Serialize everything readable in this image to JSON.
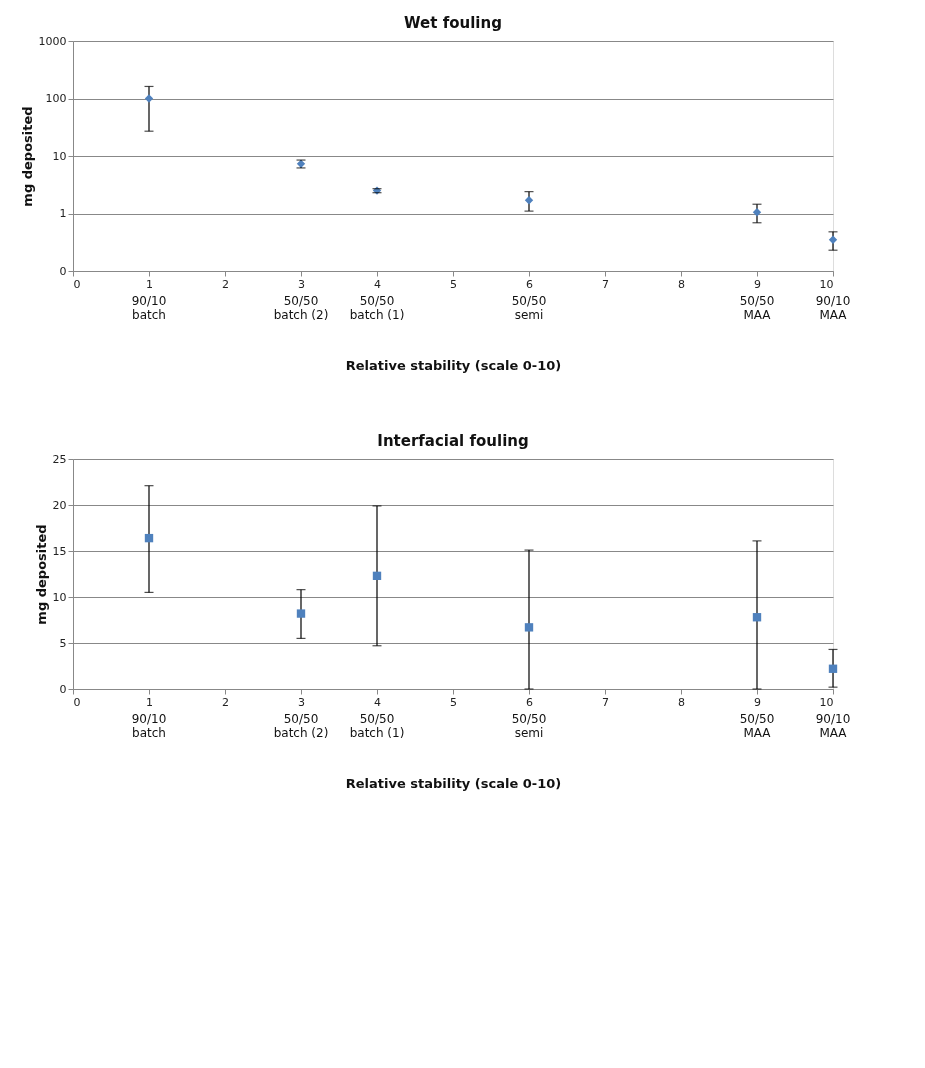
{
  "chart_data": [
    {
      "type": "scatter",
      "title": "Wet fouling",
      "xlabel": "Relative stability (scale  0-10)",
      "ylabel": "mg  deposited",
      "marker": "diamond",
      "grid": "y",
      "log": "y",
      "x": [
        1,
        3,
        4,
        6,
        9,
        10
      ],
      "series": [
        {
          "color": "#4f81bd",
          "values": [
            100,
            7.3,
            2.5,
            1.7,
            1.05,
            0.35
          ],
          "errors": [
            [
              27,
              162
            ],
            [
              6.2,
              8.5
            ],
            [
              2.3,
              2.7
            ],
            [
              1.1,
              2.4
            ],
            [
              0.69,
              1.45
            ],
            [
              0.23,
              0.48
            ]
          ]
        }
      ],
      "xlim": [
        0,
        10
      ],
      "xticks": [
        0,
        1,
        2,
        3,
        4,
        5,
        6,
        7,
        8,
        9,
        10
      ],
      "ylim": [
        0.1,
        1000
      ],
      "yticks": [
        {
          "value": 0.1,
          "label": "0"
        },
        1,
        10,
        100,
        1000
      ],
      "annotations": [
        "90/10\nbatch",
        "50/50\nbatch (2)",
        "50/50\nbatch (1)",
        "50/50\nsemi",
        "50/50\nMAA",
        "90/10\nMAA"
      ]
    },
    {
      "type": "scatter",
      "title": "Interfacial fouling",
      "xlabel": "Relative stability (scale  0-10)",
      "ylabel": "mg  deposited",
      "marker": "square",
      "grid": "y",
      "x": [
        1,
        3,
        4,
        6,
        9,
        10
      ],
      "series": [
        {
          "color": "#4f81bd",
          "values": [
            16.4,
            8.2,
            12.3,
            6.7,
            7.8,
            2.2
          ],
          "errors": [
            [
              10.5,
              22.1
            ],
            [
              5.5,
              10.8
            ],
            [
              4.7,
              19.9
            ],
            [
              0,
              15.1
            ],
            [
              0,
              16.1
            ],
            [
              0.2,
              4.3
            ]
          ]
        }
      ],
      "xlim": [
        0,
        10
      ],
      "xticks": [
        0,
        1,
        2,
        3,
        4,
        5,
        6,
        7,
        8,
        9,
        10
      ],
      "ylim": [
        0,
        25
      ],
      "yticks": [
        0,
        5,
        10,
        15,
        20,
        25
      ],
      "annotations": [
        "90/10\nbatch",
        "50/50\nbatch (2)",
        "50/50\nbatch (1)",
        "50/50\nsemi",
        "50/50\nMAA",
        "90/10\nMAA"
      ]
    }
  ]
}
